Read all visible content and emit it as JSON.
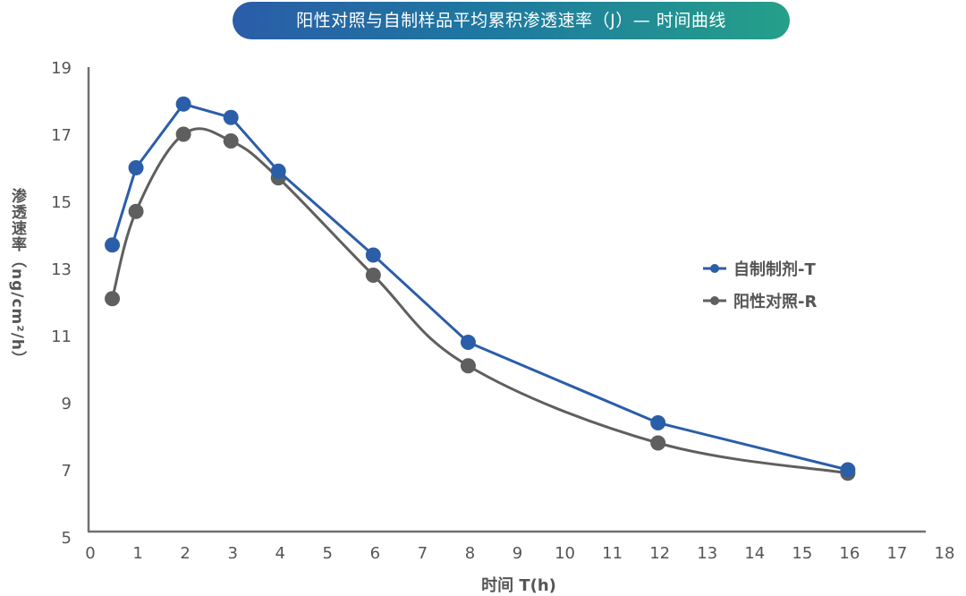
{
  "chart_data": {
    "type": "line",
    "title": "阳性对照与自制样品平均累积渗透速率（J）— 时间曲线",
    "xlabel": "时间 T(h)",
    "ylabel": "渗透速率（ng/cm²/h）",
    "xlim": [
      0,
      18
    ],
    "ylim": [
      5,
      19
    ],
    "x_ticks": [
      "0",
      "1",
      "2",
      "3",
      "4",
      "5",
      "6",
      "7",
      "8",
      "9",
      "10",
      "11",
      "12",
      "13",
      "14",
      "15",
      "16",
      "17",
      "18"
    ],
    "y_ticks": [
      "5",
      "7",
      "9",
      "11",
      "13",
      "15",
      "17",
      "19"
    ],
    "grid": false,
    "legend_position": "right-middle",
    "x": [
      0.5,
      1,
      2,
      3,
      4,
      6,
      8,
      12,
      16
    ],
    "series": [
      {
        "name": "自制制剂-T",
        "color": "#2b5ea8",
        "smooth": false,
        "values": [
          13.7,
          16.0,
          17.9,
          17.5,
          15.9,
          13.4,
          10.8,
          8.4,
          7.0
        ]
      },
      {
        "name": "阳性对照-R",
        "color": "#5f5f5f",
        "smooth": true,
        "values": [
          12.1,
          14.7,
          17.0,
          16.8,
          15.7,
          12.8,
          10.1,
          7.8,
          6.9
        ]
      }
    ]
  }
}
